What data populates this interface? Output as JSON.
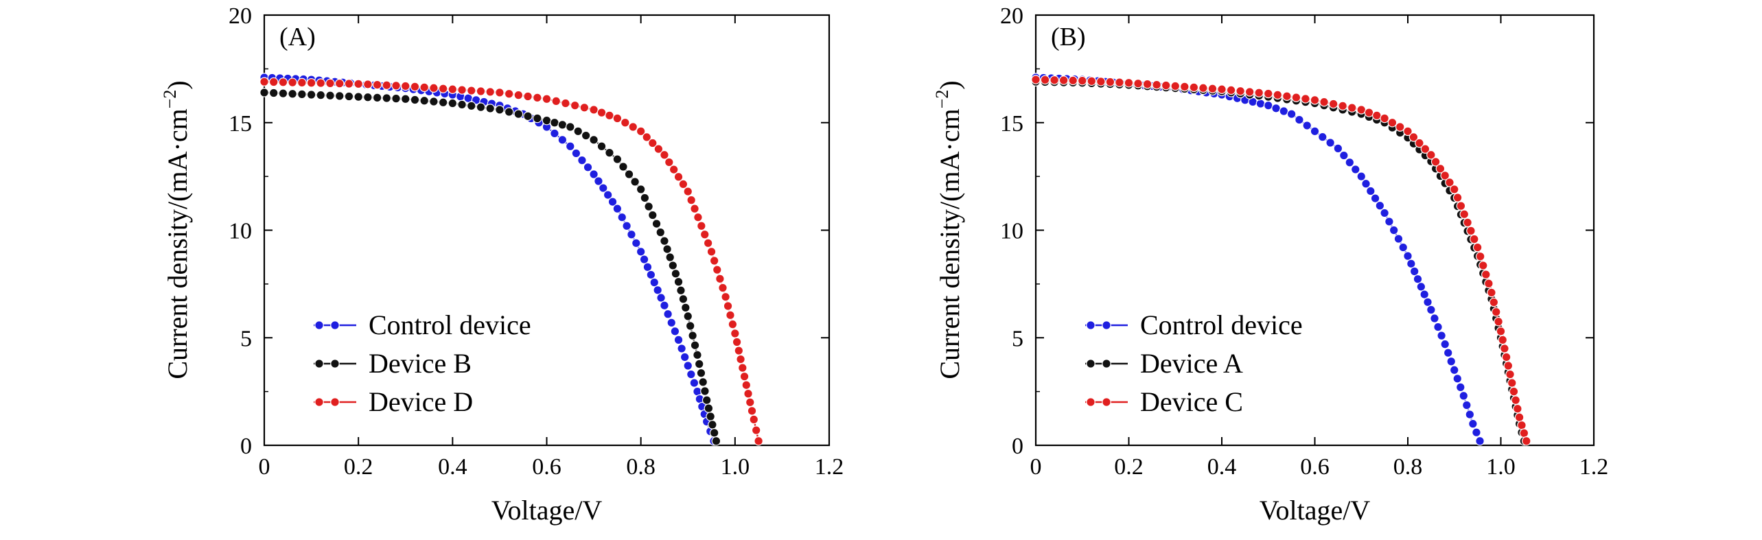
{
  "chart_data": [
    {
      "type": "line",
      "panel_label": "(A)",
      "xlabel": "Voltage/V",
      "ylabel": "Current density/(mA·cm",
      "ylabel_sup": "−2",
      "ylabel_close": ")",
      "xlim": [
        0,
        1.2
      ],
      "ylim": [
        0,
        20
      ],
      "xticks": [
        0,
        0.2,
        0.4,
        0.6,
        0.8,
        1.0,
        1.2
      ],
      "xtick_labels": [
        "0",
        "0.2",
        "0.4",
        "0.6",
        "0.8",
        "1.0",
        "1.2"
      ],
      "yticks": [
        0,
        5,
        10,
        15,
        20
      ],
      "ytick_labels": [
        "0",
        "5",
        "10",
        "15",
        "20"
      ],
      "legend_position": "bottom-left",
      "series": [
        {
          "name": "Control device",
          "color": "#1f1fe0",
          "x": [
            0,
            0.05,
            0.1,
            0.15,
            0.2,
            0.25,
            0.3,
            0.35,
            0.4,
            0.45,
            0.5,
            0.55,
            0.6,
            0.65,
            0.7,
            0.75,
            0.8,
            0.85,
            0.88,
            0.9,
            0.92,
            0.94,
            0.955
          ],
          "y": [
            17.1,
            17.05,
            17.0,
            16.9,
            16.8,
            16.7,
            16.6,
            16.45,
            16.3,
            16.05,
            15.8,
            15.4,
            14.8,
            13.9,
            12.6,
            11.0,
            9.0,
            6.5,
            4.9,
            3.7,
            2.5,
            1.1,
            0.2
          ]
        },
        {
          "name": "Device B",
          "color": "#111111",
          "x": [
            0,
            0.1,
            0.2,
            0.3,
            0.4,
            0.5,
            0.6,
            0.65,
            0.7,
            0.75,
            0.8,
            0.85,
            0.88,
            0.9,
            0.92,
            0.94,
            0.96
          ],
          "y": [
            16.4,
            16.3,
            16.2,
            16.1,
            15.9,
            15.6,
            15.1,
            14.8,
            14.2,
            13.3,
            11.9,
            9.5,
            7.6,
            6.0,
            4.2,
            2.1,
            0.2
          ]
        },
        {
          "name": "Device D",
          "color": "#e01f1f",
          "x": [
            0,
            0.1,
            0.2,
            0.3,
            0.4,
            0.5,
            0.6,
            0.7,
            0.75,
            0.8,
            0.85,
            0.9,
            0.95,
            0.98,
            1.0,
            1.02,
            1.04,
            1.05
          ],
          "y": [
            16.9,
            16.85,
            16.8,
            16.7,
            16.55,
            16.4,
            16.1,
            15.6,
            15.2,
            14.6,
            13.5,
            11.8,
            9.0,
            6.9,
            5.2,
            3.2,
            1.2,
            0.2
          ]
        }
      ]
    },
    {
      "type": "line",
      "panel_label": "(B)",
      "xlabel": "Voltage/V",
      "ylabel": "Current density/(mA·cm",
      "ylabel_sup": "−2",
      "ylabel_close": ")",
      "xlim": [
        0,
        1.2
      ],
      "ylim": [
        0,
        20
      ],
      "xticks": [
        0,
        0.2,
        0.4,
        0.6,
        0.8,
        1.0,
        1.2
      ],
      "xtick_labels": [
        "0",
        "0.2",
        "0.4",
        "0.6",
        "0.8",
        "1.0",
        "1.2"
      ],
      "yticks": [
        0,
        5,
        10,
        15,
        20
      ],
      "ytick_labels": [
        "0",
        "5",
        "10",
        "15",
        "20"
      ],
      "legend_position": "bottom-left",
      "series": [
        {
          "name": "Control device",
          "color": "#1f1fe0",
          "x": [
            0,
            0.05,
            0.1,
            0.15,
            0.2,
            0.25,
            0.3,
            0.35,
            0.4,
            0.45,
            0.5,
            0.55,
            0.6,
            0.65,
            0.7,
            0.75,
            0.8,
            0.85,
            0.88,
            0.9,
            0.92,
            0.94,
            0.955
          ],
          "y": [
            17.1,
            17.05,
            17.0,
            16.9,
            16.8,
            16.7,
            16.6,
            16.45,
            16.3,
            16.05,
            15.8,
            15.4,
            14.6,
            13.8,
            12.5,
            10.8,
            8.8,
            6.3,
            4.7,
            3.5,
            2.3,
            1.0,
            0.2
          ]
        },
        {
          "name": "Device A",
          "color": "#111111",
          "x": [
            0,
            0.1,
            0.2,
            0.3,
            0.4,
            0.5,
            0.6,
            0.7,
            0.75,
            0.8,
            0.85,
            0.9,
            0.95,
            0.98,
            1.0,
            1.02,
            1.04,
            1.05
          ],
          "y": [
            16.9,
            16.85,
            16.75,
            16.6,
            16.45,
            16.2,
            15.9,
            15.4,
            15.0,
            14.3,
            13.2,
            11.5,
            8.8,
            6.8,
            5.0,
            3.0,
            1.0,
            0.2
          ]
        },
        {
          "name": "Device C",
          "color": "#e01f1f",
          "x": [
            0,
            0.1,
            0.2,
            0.3,
            0.4,
            0.5,
            0.6,
            0.7,
            0.75,
            0.8,
            0.85,
            0.9,
            0.95,
            0.98,
            1.0,
            1.02,
            1.04,
            1.055
          ],
          "y": [
            17.0,
            16.95,
            16.85,
            16.7,
            16.55,
            16.35,
            16.05,
            15.6,
            15.2,
            14.6,
            13.5,
            11.9,
            9.2,
            7.1,
            5.3,
            3.3,
            1.3,
            0.2
          ]
        }
      ]
    }
  ]
}
